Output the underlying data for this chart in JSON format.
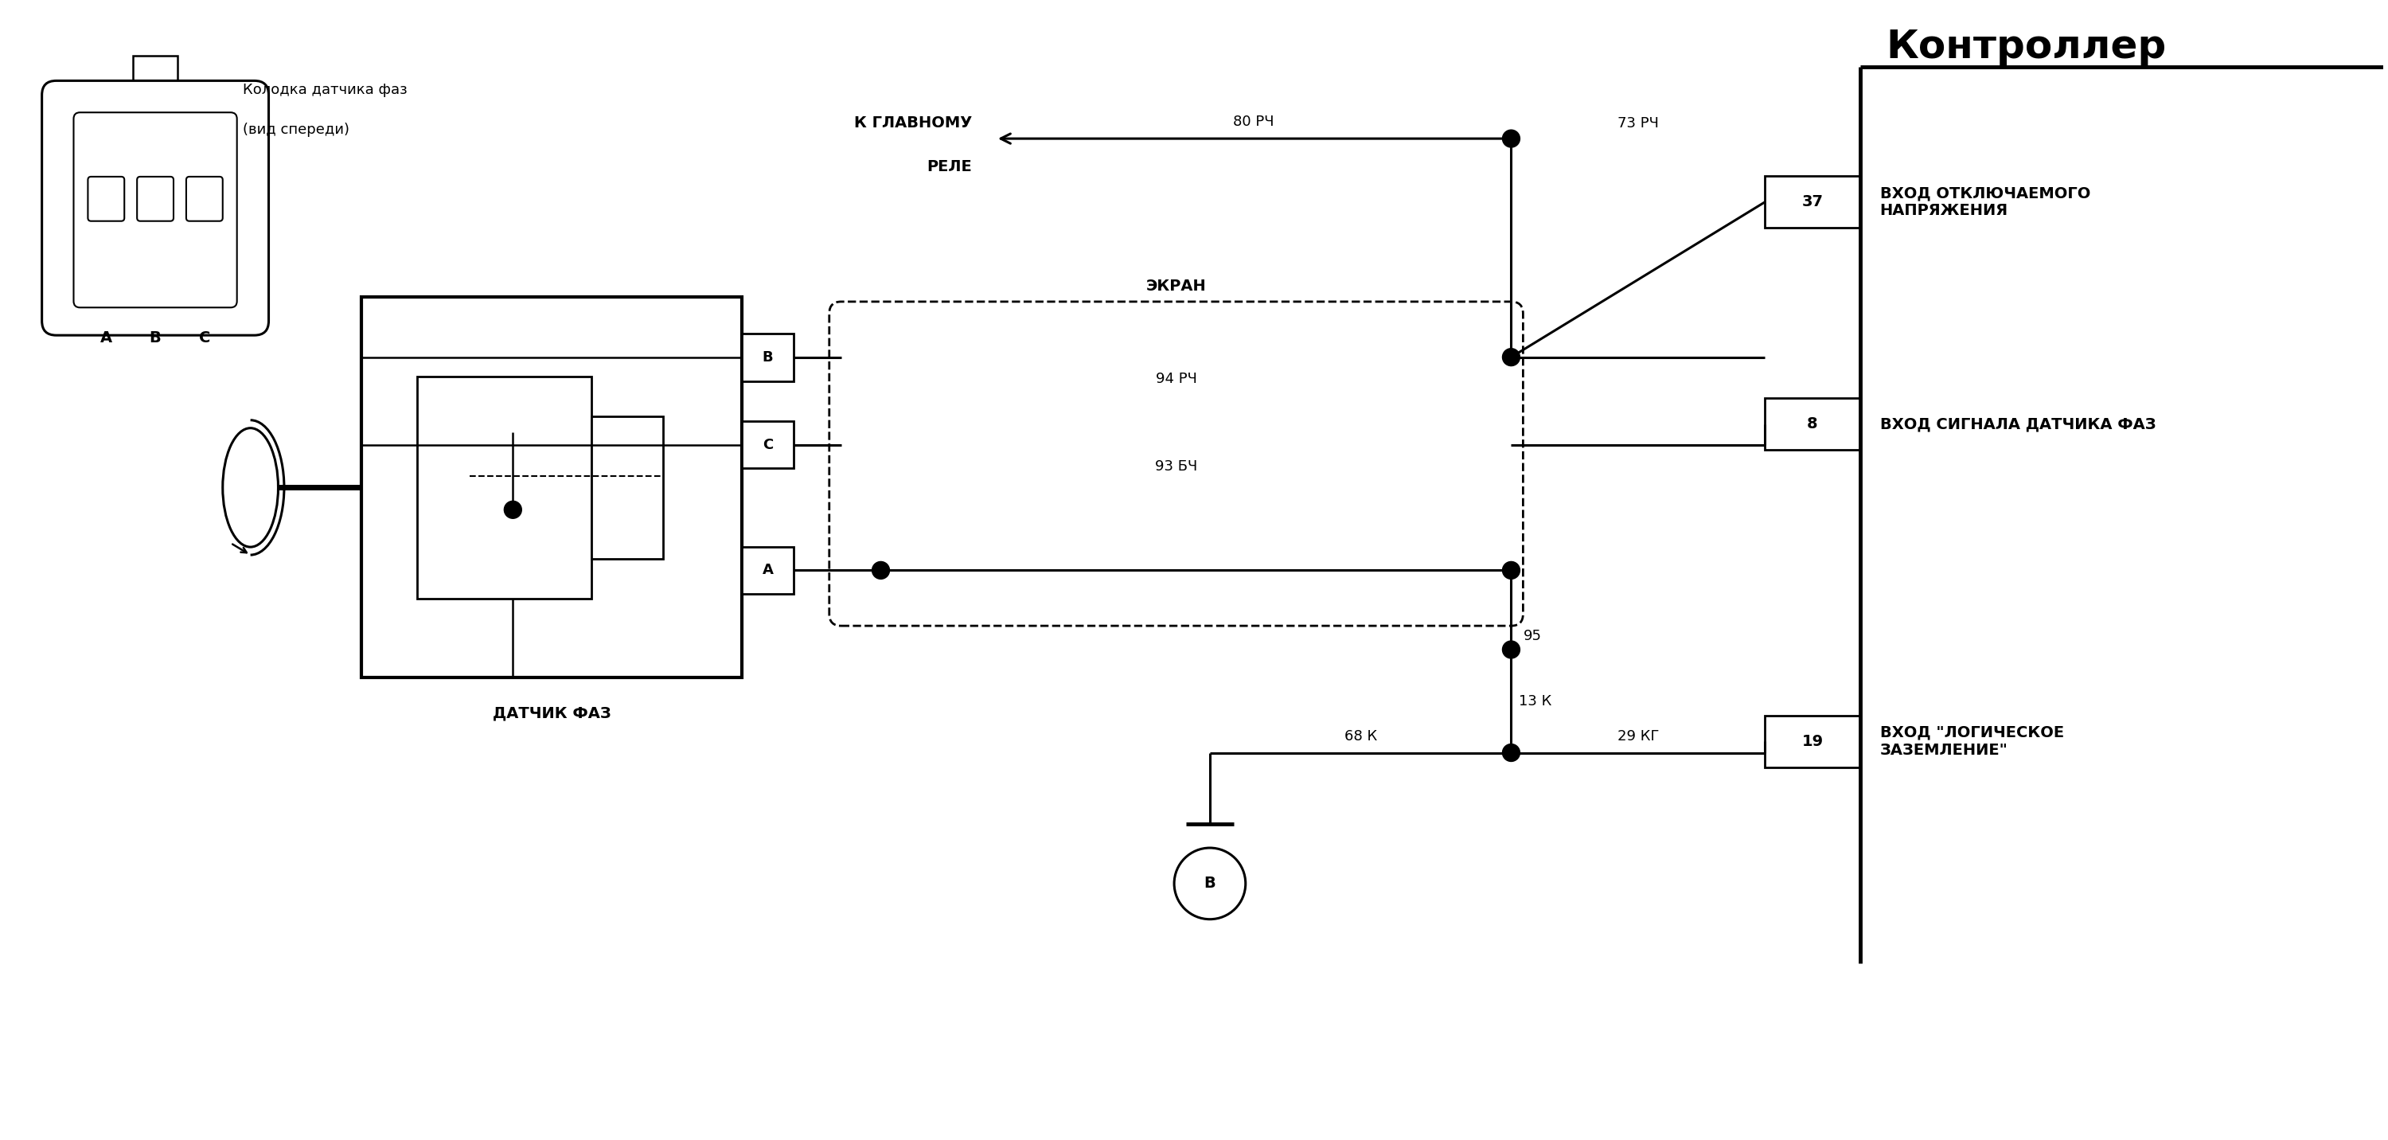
{
  "title": "Контроллер",
  "connector_label_line1": "Колодка датчика фаз",
  "connector_label_line2": "(вид спереди)",
  "sensor_label": "ДАТЧИК ФАЗ",
  "screen_label": "ЭКРАН",
  "relay_label_line1": "К ГЛАВНОМУ",
  "relay_label_line2": "РЕЛЕ",
  "wire_labels": {
    "80rch": "80 РЧ",
    "73rch": "73 РЧ",
    "94rch": "94 РЧ",
    "93bch": "93 БЧ",
    "95": "95",
    "13k": "13 К",
    "68k": "68 К",
    "29kg": "29 КГ"
  },
  "pin_labels": {
    "37": "37",
    "8": "8",
    "19": "19"
  },
  "pin_descriptions": {
    "37": "ВХОД ОТКЛЮЧАЕМОГО\nНАПРЯЖЕНИЯ",
    "8": "ВХОД СИГНАЛА ДАТЧИКА ФАЗ",
    "19": "ВХОД \"ЛОГИЧЕСКОЕ\nЗАЗЕМЛЕНИЕ\""
  },
  "abc_labels": [
    "A",
    "B",
    "C"
  ],
  "bg_color": "#ffffff",
  "line_color": "#000000",
  "fontsize_title": 36,
  "fontsize_connector": 13,
  "fontsize_label": 14,
  "fontsize_small": 13,
  "fontsize_pin": 14,
  "fontsize_desc": 14
}
